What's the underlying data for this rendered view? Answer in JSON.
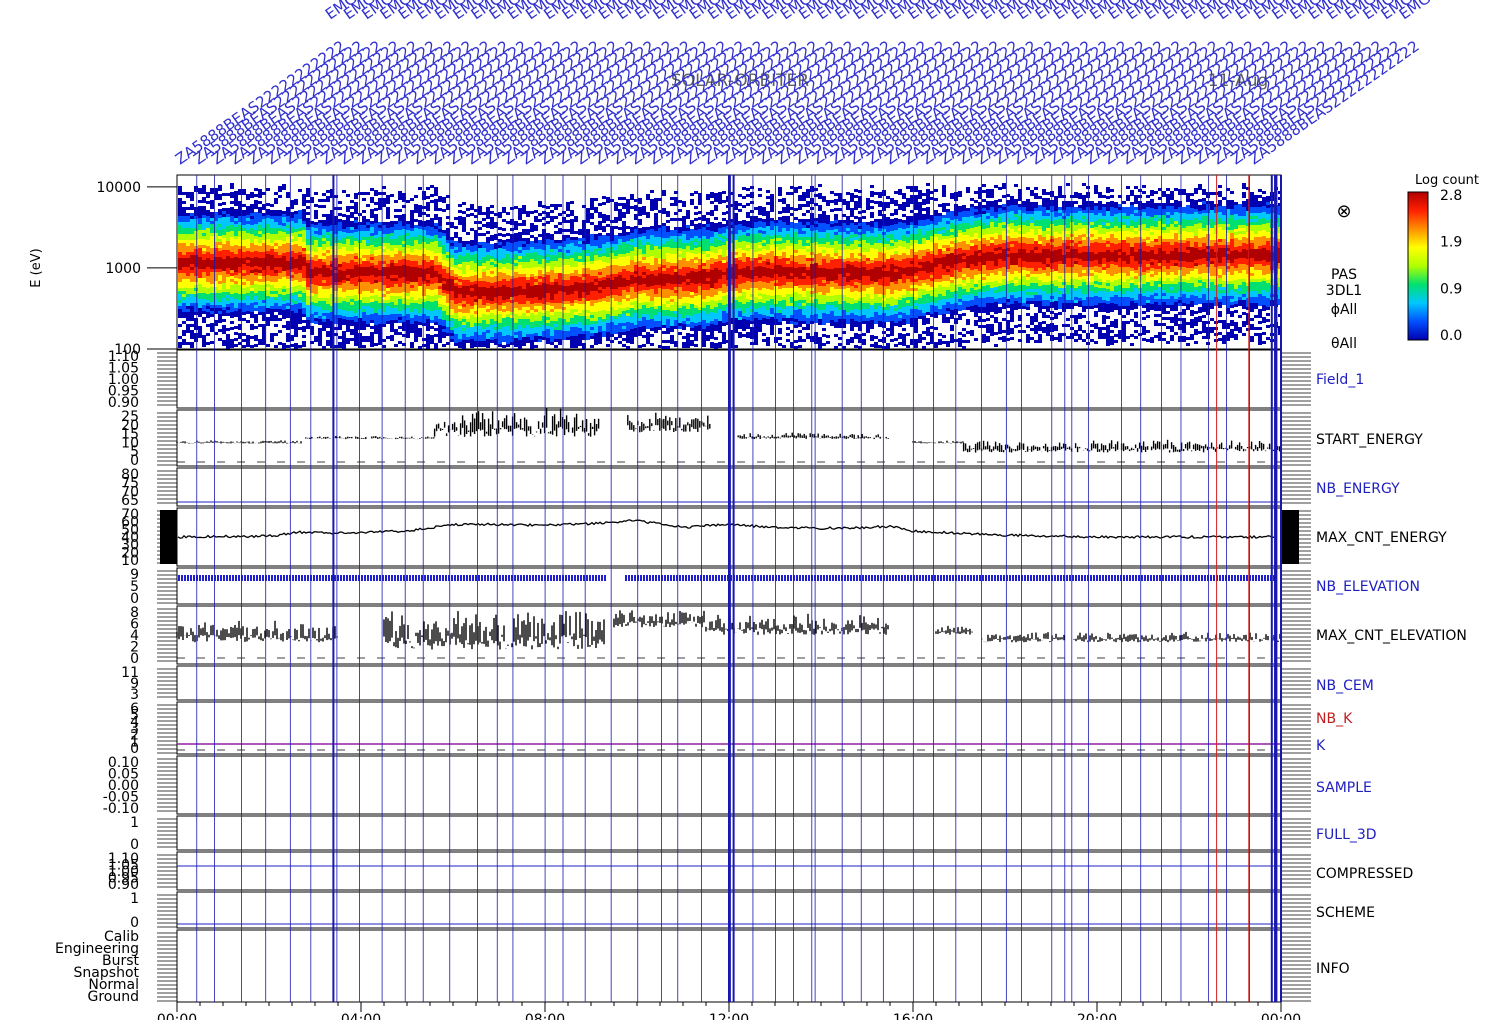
{
  "header": {
    "mission": "SOLAR-ORBITER",
    "date": "11-Aug",
    "rotated_labels": [
      "ZA5888B",
      "EAS22222222222",
      "EMGGGGGGGGGG"
    ]
  },
  "colorbar": {
    "title": "Log count",
    "ticks": [
      "2.8",
      "1.9",
      "0.9",
      "0.0"
    ],
    "stops": [
      "#0000b0",
      "#0050ff",
      "#00c8ff",
      "#00e070",
      "#b0ff00",
      "#ffff00",
      "#ff9000",
      "#ff2000",
      "#b00000"
    ]
  },
  "x_axis": {
    "ticks": [
      "00:00",
      "04:00",
      "08:00",
      "12:00",
      "16:00",
      "20:00",
      "00:00"
    ],
    "range_hours": [
      0,
      24
    ]
  },
  "chart_data": [
    {
      "type": "heatmap",
      "name": "PAS 3DL1",
      "ylabel": "E (eV)",
      "yscale": "log",
      "ylim": [
        100,
        14000
      ],
      "yticks": [
        "10000",
        "1000",
        "100"
      ],
      "label_lines": [
        "PAS",
        "3DL1",
        "ϕAll",
        "θAll"
      ],
      "symbol": "⊗",
      "peak_energy": {
        "hours": [
          0,
          2.7,
          2.8,
          5.6,
          6.0,
          7.0,
          8.0,
          9.0,
          10.0,
          11.5,
          12.0,
          13.0,
          14.0,
          15.5,
          16.0,
          17.0,
          18.0,
          20.0,
          22.0,
          24.0
        ],
        "eV": [
          1200,
          1200,
          900,
          900,
          520,
          520,
          560,
          600,
          750,
          780,
          900,
          950,
          900,
          900,
          1000,
          1300,
          1500,
          1450,
          1500,
          1500
        ]
      }
    },
    {
      "type": "line",
      "name": "Field_1",
      "color": "#2020c0",
      "yticks": [
        "1.10",
        "1.05",
        "1.00",
        "0.95",
        "0.90"
      ],
      "ylim": [
        0.9,
        1.1
      ],
      "values": []
    },
    {
      "type": "line",
      "name": "START_ENERGY",
      "color": "#000000",
      "yticks": [
        "25",
        "20",
        "15",
        "10",
        "5",
        "0"
      ],
      "ylim": [
        0,
        25
      ],
      "segments": [
        {
          "h": [
            0,
            2.7
          ],
          "y": [
            10,
            11
          ]
        },
        {
          "h": [
            2.8,
            5.6
          ],
          "y": [
            12,
            13
          ]
        },
        {
          "h": [
            5.6,
            9.2
          ],
          "y": [
            13,
            22
          ]
        },
        {
          "h": [
            9.2,
            9.8
          ],
          "y": [
            23,
            23
          ]
        },
        {
          "h": [
            9.8,
            11.6
          ],
          "y": [
            15,
            22
          ]
        },
        {
          "h": [
            12.2,
            15.5
          ],
          "y": [
            12,
            14
          ]
        },
        {
          "h": [
            16,
            17.1
          ],
          "y": [
            10,
            11
          ]
        },
        {
          "h": [
            17.1,
            24
          ],
          "y": [
            6,
            10
          ]
        }
      ]
    },
    {
      "type": "line",
      "name": "NB_ENERGY",
      "color": "#2020c0",
      "yticks": [
        "80",
        "75",
        "70",
        "65"
      ],
      "ylim": [
        60,
        82
      ],
      "values": []
    },
    {
      "type": "line",
      "name": "MAX_CNT_ENERGY",
      "color": "#000000",
      "yticks": [
        "70",
        "60",
        "50",
        "40",
        "30",
        "20",
        "10"
      ],
      "ylim": [
        10,
        70
      ],
      "x": [
        0,
        2,
        2.7,
        3.5,
        5,
        6,
        7,
        8,
        9,
        10,
        11,
        12,
        13,
        14,
        15,
        15.5,
        16,
        18,
        20,
        22,
        24
      ],
      "y": [
        40,
        41,
        45,
        44,
        46,
        53,
        53,
        52,
        54,
        57,
        50,
        53,
        50,
        49,
        50,
        51,
        46,
        42,
        40,
        40,
        40
      ]
    },
    {
      "type": "line",
      "name": "NB_ELEVATION",
      "color": "#2020c0",
      "yticks": [
        "9",
        "5",
        "0"
      ],
      "ylim": [
        0,
        9
      ],
      "values": []
    },
    {
      "type": "line",
      "name": "MAX_CNT_ELEVATION",
      "color": "#000000",
      "yticks": [
        "8",
        "6",
        "4",
        "2",
        "0"
      ],
      "ylim": [
        0,
        8
      ],
      "segments": [
        {
          "h": [
            0,
            3.5
          ],
          "y": [
            3,
            5
          ]
        },
        {
          "h": [
            4.5,
            9.3
          ],
          "y": [
            2,
            6
          ]
        },
        {
          "h": [
            9.5,
            11.5
          ],
          "y": [
            5,
            7
          ]
        },
        {
          "h": [
            11.5,
            15.5
          ],
          "y": [
            4,
            6
          ]
        },
        {
          "h": [
            16.5,
            17.3
          ],
          "y": [
            4,
            5
          ]
        },
        {
          "h": [
            17.5,
            19.3
          ],
          "y": [
            3,
            4
          ]
        },
        {
          "h": [
            19.5,
            24
          ],
          "y": [
            3,
            4
          ]
        }
      ]
    },
    {
      "type": "line",
      "name": "NB_CEM",
      "color": "#2020c0",
      "yticks": [
        "11",
        "9",
        "3"
      ],
      "ylim": [
        0,
        12
      ],
      "values": []
    },
    {
      "type": "line",
      "name": "NB_K",
      "color": "#c02020",
      "yticks": [
        "6",
        "5",
        "4",
        "3",
        "2",
        "1",
        "0"
      ],
      "ylim": [
        0,
        6
      ],
      "values": []
    },
    {
      "type": "line",
      "name": "K",
      "color": "#2020c0",
      "yticks": [],
      "values": []
    },
    {
      "type": "line",
      "name": "SAMPLE",
      "color": "#2020c0",
      "yticks": [
        "0.10",
        "0.05",
        "0.00",
        "-0.05",
        "-0.10"
      ],
      "ylim": [
        -0.1,
        0.1
      ],
      "values": []
    },
    {
      "type": "line",
      "name": "FULL_3D",
      "color": "#2020c0",
      "yticks": [
        "1",
        "0"
      ],
      "ylim": [
        0,
        1
      ],
      "values": []
    },
    {
      "type": "line",
      "name": "COMPRESSED",
      "color": "#000000",
      "yticks": [
        "1.10",
        "1.05",
        "1.00",
        "0.95",
        "0.90"
      ],
      "ylim": [
        0.9,
        1.1
      ],
      "values": []
    },
    {
      "type": "line",
      "name": "SCHEME",
      "color": "#000000",
      "yticks": [
        "1",
        "0"
      ],
      "ylim": [
        0,
        1
      ],
      "values": []
    },
    {
      "type": "line",
      "name": "INFO",
      "color": "#000000",
      "yticks": [
        "Calib",
        "Engineering",
        "Burst",
        "Snapshot",
        "Normal",
        "Ground"
      ],
      "values": []
    }
  ]
}
